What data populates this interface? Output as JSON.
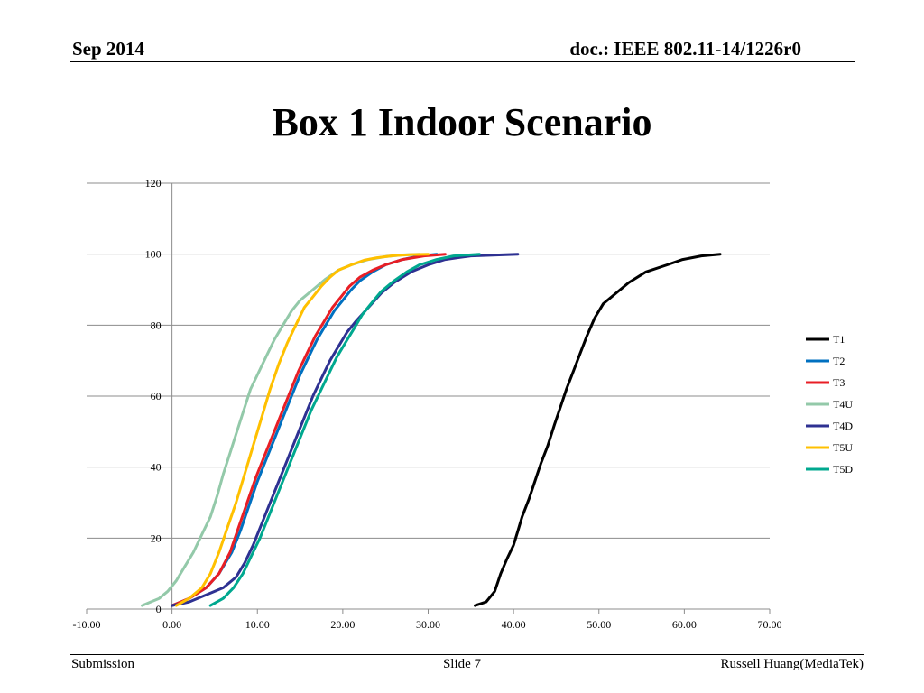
{
  "header": {
    "date": "Sep 2014",
    "doc_id": "doc.: IEEE 802.11-14/1226r0"
  },
  "slide": {
    "title": "Box 1 Indoor Scenario"
  },
  "footer": {
    "left": "Submission",
    "center": "Slide 7",
    "right": "Russell Huang(MediaTek)"
  },
  "chart_data": {
    "type": "line",
    "title": "",
    "xlabel": "",
    "ylabel": "",
    "xlim": [
      -10,
      70
    ],
    "ylim": [
      0,
      120
    ],
    "x_ticks": [
      "-10.00",
      "0.00",
      "10.00",
      "20.00",
      "30.00",
      "40.00",
      "50.00",
      "60.00",
      "70.00"
    ],
    "y_ticks": [
      "0",
      "20",
      "40",
      "60",
      "80",
      "100",
      "120"
    ],
    "grid": "horizontal",
    "legend_position": "right",
    "series": [
      {
        "name": "T1",
        "color": "#000000",
        "x": [
          35.5,
          36.8,
          37.8,
          38.5,
          39.2,
          40.0,
          40.5,
          41.0,
          41.8,
          42.5,
          43.2,
          44.0,
          44.8,
          45.5,
          46.2,
          47.0,
          47.8,
          48.6,
          49.5,
          50.5,
          52.0,
          53.5,
          55.5,
          58.0,
          59.8,
          62.0,
          64.2
        ],
        "y": [
          1,
          2,
          5,
          10,
          14,
          18,
          22,
          26,
          31,
          36,
          41,
          46,
          52,
          57,
          62,
          67,
          72,
          77,
          82,
          86,
          89,
          92,
          95,
          97,
          98.5,
          99.5,
          100
        ]
      },
      {
        "name": "T2",
        "color": "#0070c0",
        "x": [
          0.0,
          2.0,
          4.0,
          5.5,
          7.0,
          8.0,
          9.0,
          10.0,
          11.0,
          12.0,
          13.0,
          14.0,
          15.0,
          16.0,
          17.0,
          18.0,
          19.0,
          20.0,
          21.0,
          22.0,
          23.5,
          25.0,
          27.0,
          29.0,
          31.0
        ],
        "y": [
          1,
          3,
          6,
          10,
          16,
          22,
          29,
          36,
          42,
          48,
          54,
          60,
          66,
          71,
          76,
          80,
          84,
          87,
          90,
          92.5,
          95,
          97,
          98.5,
          99.5,
          100
        ]
      },
      {
        "name": "T3",
        "color": "#e81e25",
        "x": [
          0.0,
          2.0,
          4.0,
          5.5,
          6.8,
          7.8,
          8.8,
          9.8,
          10.8,
          11.8,
          12.8,
          13.8,
          14.8,
          15.8,
          16.8,
          17.8,
          18.8,
          19.8,
          20.8,
          22.0,
          23.5,
          25.0,
          27.0,
          29.5,
          32.0
        ],
        "y": [
          1,
          3,
          6,
          10,
          16,
          23,
          30,
          37,
          43,
          49,
          55,
          61,
          67,
          72,
          77,
          81,
          85,
          88,
          91,
          93.5,
          95.5,
          97,
          98.5,
          99.5,
          100
        ]
      },
      {
        "name": "T4U",
        "color": "#93c9a9",
        "x": [
          -3.5,
          -2.5,
          -1.5,
          -0.5,
          0.5,
          1.5,
          2.5,
          3.5,
          4.5,
          5.3,
          6.0,
          6.8,
          7.6,
          8.4,
          9.2,
          10.0,
          11.0,
          12.0,
          13.0,
          14.0,
          15.0,
          16.5,
          18.0,
          19.5,
          21.0,
          23.0,
          25.0,
          27.0,
          29.0
        ],
        "y": [
          1,
          2,
          3,
          5,
          8,
          12,
          16,
          21,
          26,
          32,
          38,
          44,
          50,
          56,
          62,
          66,
          71,
          76,
          80,
          84,
          87,
          90,
          93,
          95.5,
          97,
          98.5,
          99.3,
          99.8,
          100
        ]
      },
      {
        "name": "T4D",
        "color": "#2e3192",
        "x": [
          0.0,
          2.0,
          4.0,
          6.0,
          7.5,
          8.5,
          9.5,
          10.5,
          11.5,
          12.5,
          13.5,
          14.5,
          15.5,
          16.5,
          17.5,
          18.5,
          19.5,
          20.5,
          21.5,
          23.0,
          24.5,
          26.0,
          28.0,
          30.0,
          32.0,
          35.0,
          40.5
        ],
        "y": [
          1,
          2,
          4,
          6,
          9,
          13,
          18,
          24,
          30,
          36,
          42,
          48,
          54,
          60,
          65,
          70,
          74,
          78,
          81,
          85,
          89,
          92,
          95,
          97,
          98.5,
          99.5,
          100
        ]
      },
      {
        "name": "T5U",
        "color": "#ffc000",
        "x": [
          0.5,
          2.0,
          3.5,
          4.5,
          5.5,
          6.5,
          7.5,
          8.5,
          9.5,
          10.5,
          11.5,
          12.5,
          13.5,
          14.5,
          15.5,
          16.5,
          17.5,
          18.5,
          19.5,
          21.0,
          22.5,
          24.0,
          26.0,
          28.0,
          30.0
        ],
        "y": [
          1,
          3,
          6,
          10,
          16,
          23,
          30,
          38,
          46,
          54,
          62,
          69,
          75,
          80,
          85,
          88,
          91,
          93.5,
          95.5,
          97,
          98.3,
          99,
          99.6,
          99.9,
          100
        ]
      },
      {
        "name": "T5D",
        "color": "#00a88f",
        "x": [
          4.5,
          6.0,
          7.2,
          8.3,
          9.3,
          10.3,
          11.3,
          12.3,
          13.3,
          14.3,
          15.3,
          16.3,
          17.3,
          18.3,
          19.3,
          20.3,
          21.3,
          22.3,
          23.3,
          24.5,
          26.0,
          27.5,
          29.0,
          31.0,
          33.0,
          36.0
        ],
        "y": [
          1,
          3,
          6,
          10,
          15,
          20,
          26,
          32,
          38,
          44,
          50,
          56,
          61,
          66,
          71,
          75,
          79,
          83,
          86,
          89.5,
          92.5,
          95,
          97,
          98.5,
          99.5,
          100
        ]
      }
    ]
  }
}
